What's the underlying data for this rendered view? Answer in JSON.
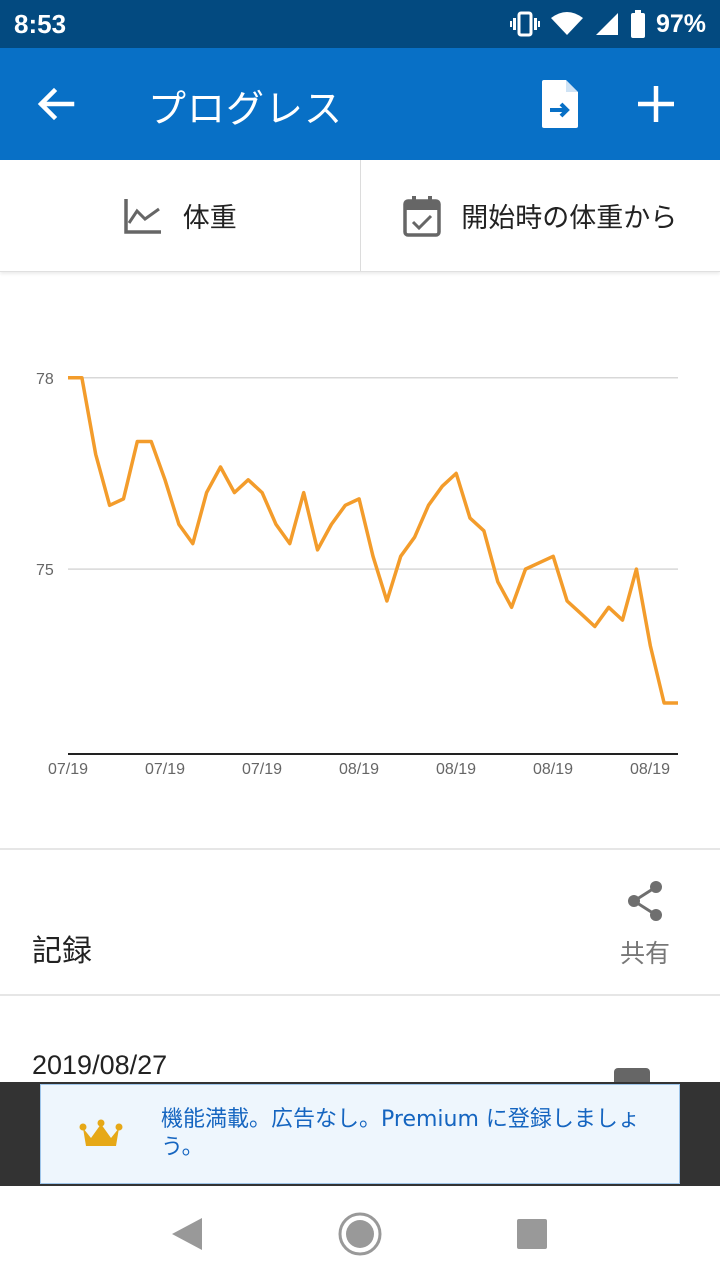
{
  "status_bar": {
    "time": "8:53",
    "battery": "97%"
  },
  "app_bar": {
    "title": "プログレス",
    "back_icon": "arrow-left-icon",
    "export_icon": "file-export-icon",
    "add_icon": "plus-icon"
  },
  "tabs": [
    {
      "label": "体重",
      "icon": "line-chart-icon"
    },
    {
      "label": "開始時の体重から",
      "icon": "calendar-check-icon"
    }
  ],
  "chart_data": {
    "type": "line",
    "x_tick_labels": [
      "07/19",
      "07/19",
      "07/19",
      "08/19",
      "08/19",
      "08/19",
      "08/19"
    ],
    "y_tick_labels": [
      "78",
      "75"
    ],
    "ylim": [
      72.1,
      79.0
    ],
    "grid": true,
    "line_color": "#f39c2b",
    "series": [
      {
        "values": [
          78.0,
          78.0,
          76.8,
          76.0,
          76.1,
          77.0,
          77.0,
          76.4,
          75.7,
          75.4,
          76.2,
          76.6,
          76.2,
          76.4,
          76.2,
          75.7,
          75.4,
          76.2,
          75.3,
          75.7,
          76.0,
          76.1,
          75.2,
          74.5,
          75.2,
          75.5,
          76.0,
          76.3,
          76.5,
          75.8,
          75.6,
          74.8,
          74.4,
          75.0,
          75.1,
          75.2,
          74.5,
          74.3,
          74.1,
          74.4,
          74.2,
          75.0,
          73.8,
          72.9,
          72.9
        ]
      }
    ]
  },
  "records": {
    "label": "記録",
    "share_label": "共有",
    "share_icon": "share-icon"
  },
  "entry": {
    "date": "2019/08/27"
  },
  "ad": {
    "text": "機能満載。広告なし。Premium に登録しましょう。",
    "icon": "crown-icon",
    "crown_color": "#e6a817"
  },
  "nav": {
    "back": "nav-back-icon",
    "home": "nav-home-icon",
    "recents": "nav-recents-icon"
  }
}
